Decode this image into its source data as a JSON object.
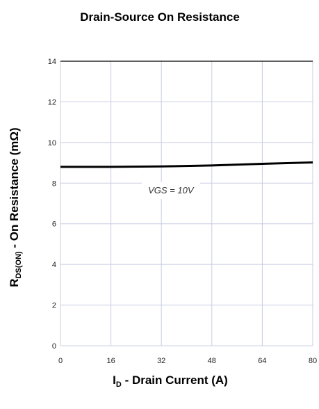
{
  "chart_data": {
    "type": "line",
    "title": "Drain-Source On Resistance",
    "xlabel": {
      "main": "I",
      "sub": "D",
      "rest": " - Drain Current (A)"
    },
    "ylabel": {
      "main": "R",
      "sub": "DS(ON)",
      "rest": " - On Resistance (mΩ)"
    },
    "xlim": [
      0,
      80
    ],
    "ylim": [
      0,
      14
    ],
    "x_ticks": [
      0,
      16,
      32,
      48,
      64,
      80
    ],
    "x_tick_labels": [
      "0",
      "16",
      "32",
      "48",
      "64",
      "80"
    ],
    "y_ticks": [
      0,
      2,
      4,
      6,
      8,
      10,
      12,
      14
    ],
    "y_tick_labels": [
      "0",
      "2",
      "4",
      "6",
      "8",
      "10",
      "12",
      "14"
    ],
    "grid": true,
    "series": [
      {
        "color": "#000000",
        "x": [
          0,
          16,
          32,
          48,
          64,
          80
        ],
        "y": [
          8.8,
          8.8,
          8.82,
          8.87,
          8.95,
          9.02
        ]
      }
    ],
    "annotation": {
      "text": "VGS = 10V",
      "x": 35,
      "y": 7.5
    }
  }
}
